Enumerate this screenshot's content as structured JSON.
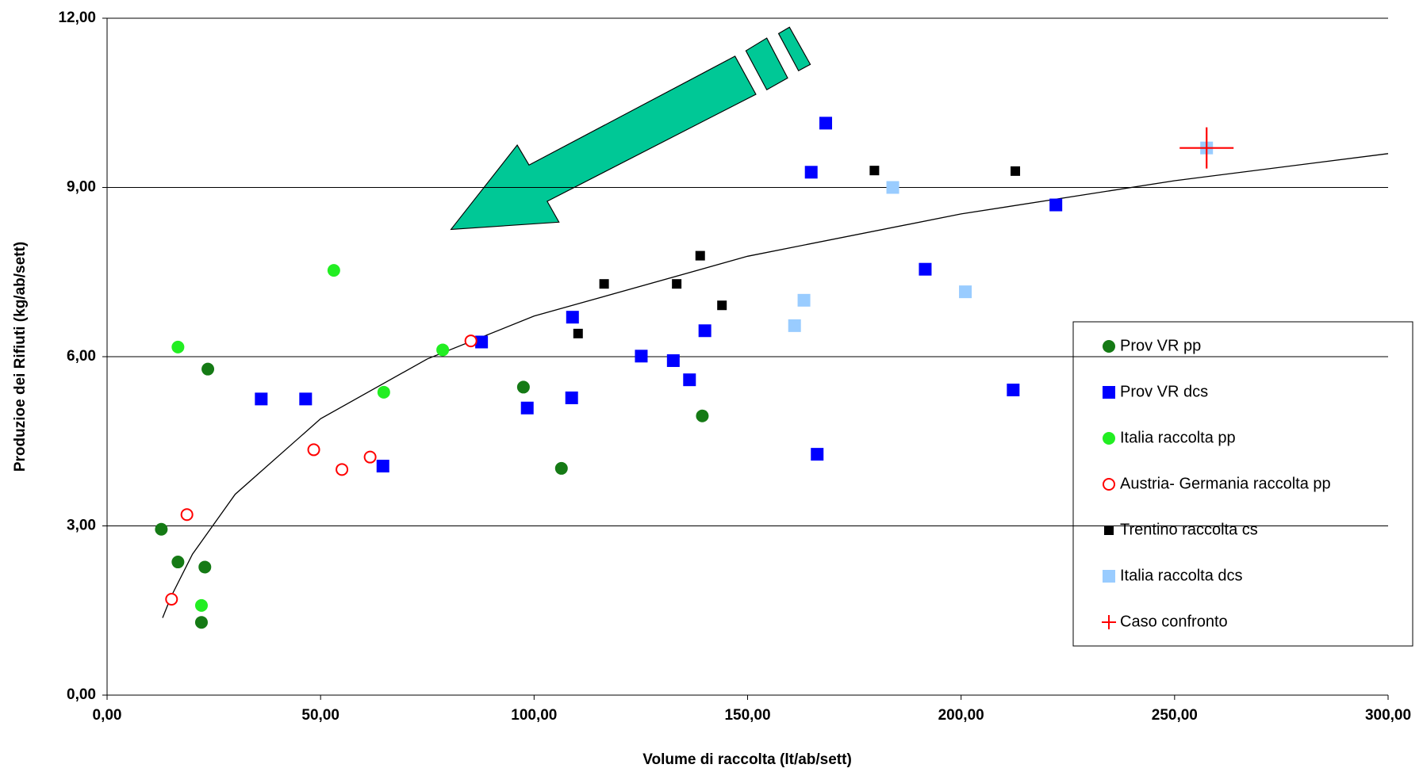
{
  "chart_data": {
    "type": "scatter",
    "xlabel": "Volume di raccolta (lt/ab/sett)",
    "ylabel": "Produzioe dei Rifiuti (kg/ab/sett)",
    "xlim": [
      0,
      300
    ],
    "ylim": [
      0,
      12
    ],
    "xticks": [
      {
        "value": 0,
        "label": "0,00"
      },
      {
        "value": 50,
        "label": "50,00"
      },
      {
        "value": 100,
        "label": "100,00"
      },
      {
        "value": 150,
        "label": "150,00"
      },
      {
        "value": 200,
        "label": "200,00"
      },
      {
        "value": 250,
        "label": "250,00"
      },
      {
        "value": 300,
        "label": "300,00"
      }
    ],
    "yticks": [
      {
        "value": 0,
        "label": "0,00"
      },
      {
        "value": 3,
        "label": "3,00"
      },
      {
        "value": 6,
        "label": "6,00"
      },
      {
        "value": 9,
        "label": "9,00"
      },
      {
        "value": 12,
        "label": "12,00"
      }
    ],
    "grid": true,
    "legend": "right",
    "series": [
      {
        "name": "Prov VR pp",
        "color": "#157a15",
        "marker": "circle",
        "x": [
          12.7,
          16.6,
          22.9,
          22.1,
          23.6,
          97.5,
          106.4,
          139.4
        ],
        "values": [
          2.94,
          2.36,
          2.27,
          1.29,
          5.78,
          5.46,
          4.02,
          4.95
        ]
      },
      {
        "name": "Prov VR dcs",
        "color": "#0000ff",
        "marker": "square",
        "x": [
          36.1,
          46.5,
          64.6,
          87.7,
          98.4,
          109.0,
          108.8,
          125.1,
          132.6,
          136.4,
          140.0,
          164.9,
          168.3,
          166.3,
          191.6,
          212.2,
          222.2
        ],
        "values": [
          5.25,
          5.25,
          4.06,
          6.26,
          5.09,
          6.7,
          5.27,
          6.01,
          5.93,
          5.59,
          6.46,
          9.27,
          10.14,
          4.27,
          7.55,
          5.41,
          8.69
        ]
      },
      {
        "name": "Italia raccolta pp",
        "color": "#22ee22",
        "marker": "circle",
        "x": [
          16.6,
          22.1,
          53.1,
          64.8,
          78.6
        ],
        "values": [
          6.17,
          1.59,
          7.53,
          5.37,
          6.12
        ]
      },
      {
        "name": "Austria- Germania raccolta pp",
        "color": "#ff0000",
        "marker": "open-circle",
        "x": [
          15.1,
          18.7,
          48.4,
          55.0,
          61.6,
          85.2
        ],
        "values": [
          1.7,
          3.2,
          4.35,
          4.0,
          4.22,
          6.28
        ]
      },
      {
        "name": "Trentino raccolta cs",
        "color": "#000000",
        "marker": "small-square",
        "x": [
          110.3,
          116.4,
          133.4,
          138.9,
          144.0,
          179.7,
          212.7
        ],
        "values": [
          6.41,
          7.29,
          7.29,
          7.79,
          6.91,
          9.3,
          9.29
        ]
      },
      {
        "name": "Italia raccolta dcs",
        "color": "#99ccff",
        "marker": "square",
        "x": [
          161.0,
          163.2,
          184.0,
          201.0,
          257.5
        ],
        "values": [
          6.55,
          7.0,
          9.0,
          7.15,
          9.7
        ]
      },
      {
        "name": "Caso confronto",
        "color": "#ff0000",
        "marker": "plus",
        "x": [
          257.5
        ],
        "values": [
          9.7
        ]
      }
    ],
    "trendline": {
      "color": "#000000",
      "x": [
        13,
        15,
        20,
        30,
        50,
        75,
        100,
        150,
        200,
        250,
        300
      ],
      "values": [
        1.37,
        1.75,
        2.5,
        3.56,
        4.9,
        5.96,
        6.72,
        7.78,
        8.53,
        9.12,
        9.6
      ]
    }
  }
}
